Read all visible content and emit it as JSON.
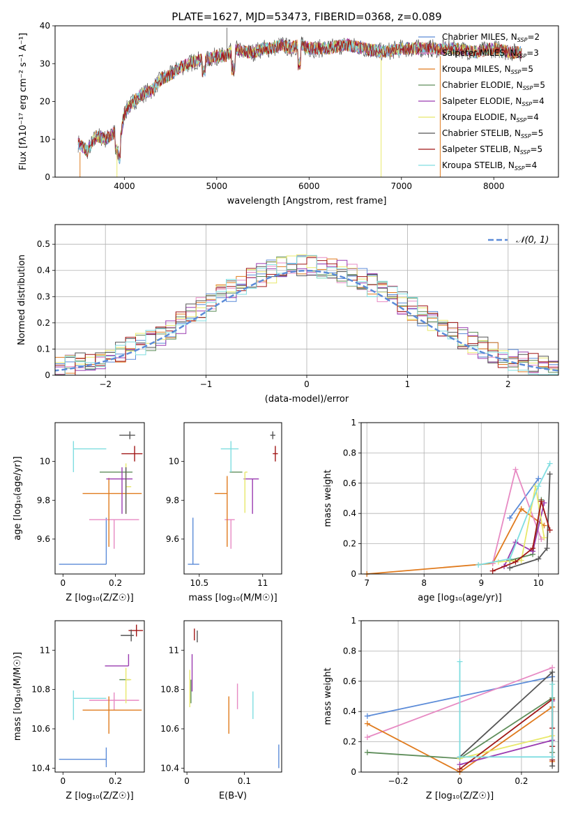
{
  "figure": {
    "title": "PLATE=1627, MJD=53473, FIBERID=0368, z=0.089"
  },
  "legend_entries": [
    {
      "label": "Chabrier MILES, N",
      "sub": "SSP",
      "tail": "=2",
      "color": "#5b8bd8"
    },
    {
      "label": "Salpeter MILES, N",
      "sub": "SSP",
      "tail": "=3",
      "color": "#e78ac3"
    },
    {
      "label": "Kroupa MILES, N",
      "sub": "SSP",
      "tail": "=5",
      "color": "#e07b1e"
    },
    {
      "label": "Chabrier ELODIE, N",
      "sub": "SSP",
      "tail": "=5",
      "color": "#5f8e5b"
    },
    {
      "label": "Salpeter ELODIE, N",
      "sub": "SSP",
      "tail": "=4",
      "color": "#9a3bb0"
    },
    {
      "label": "Kroupa ELODIE, N",
      "sub": "SSP",
      "tail": "=4",
      "color": "#e8e86a"
    },
    {
      "label": "Chabrier STELIB, N",
      "sub": "SSP",
      "tail": "=5",
      "color": "#555555"
    },
    {
      "label": "Salpeter STELIB, N",
      "sub": "SSP",
      "tail": "=5",
      "color": "#a01616"
    },
    {
      "label": "Kroupa STELIB, N",
      "sub": "SSP",
      "tail": "=4",
      "color": "#7fdde0"
    }
  ],
  "chart_data": [
    {
      "id": "spectrum",
      "type": "line",
      "xlabel": "wavelength [Angstrom, rest frame]",
      "ylabel": "Flux [fλ10⁻¹⁷ erg cm⁻² s⁻¹ A⁻¹]",
      "xlim": [
        3250,
        8700
      ],
      "ylim": [
        0,
        40
      ],
      "xticks": [
        4000,
        5000,
        6000,
        7000,
        8000
      ],
      "yticks": [
        0,
        10,
        20,
        30,
        40
      ],
      "envelope": {
        "x": [
          3500,
          3600,
          3700,
          3800,
          3900,
          3950,
          4000,
          4100,
          4200,
          4300,
          4400,
          4500,
          4600,
          4700,
          4800,
          4900,
          5000,
          5100,
          5200,
          5300,
          5400,
          5500,
          5600,
          5700,
          5800,
          5900,
          6000,
          6200,
          6400,
          6600,
          6800,
          7000,
          7200,
          7400,
          7600,
          7800,
          8000,
          8200,
          8300
        ],
        "y": [
          9,
          7,
          11,
          10,
          12,
          9,
          17,
          20,
          22,
          23,
          26,
          27,
          29,
          30,
          31,
          31,
          32,
          32,
          34,
          33,
          33,
          34,
          34,
          35,
          34,
          35,
          34,
          34,
          35,
          34,
          33,
          34,
          34,
          34,
          34,
          33,
          34,
          33,
          33
        ]
      },
      "dropouts": [
        3520,
        3920,
        6780,
        7420
      ]
    },
    {
      "id": "residuals",
      "type": "histogram",
      "xlabel": "(data-model)/error",
      "ylabel": "Normed distribution",
      "xlim": [
        -2.5,
        2.5
      ],
      "ylim": [
        0,
        0.575
      ],
      "xticks": [
        -2,
        -1,
        0,
        1,
        2
      ],
      "yticks": [
        0,
        0.1,
        0.2,
        0.3,
        0.4,
        0.5
      ],
      "bin_width": 0.1,
      "reference_curve": "𝒩(0, 1)",
      "grid": true
    },
    {
      "id": "age_vs_z",
      "type": "errorbar",
      "xlabel": "Z [log₁₀(Z/Z☉)]",
      "ylabel": "age  [log₁₀(age/yr)]",
      "xlim": [
        -0.03,
        0.31
      ],
      "ylim": [
        9.42,
        10.2
      ],
      "xticks": [
        0.0,
        0.2
      ],
      "yticks": [
        9.6,
        9.8,
        10.0
      ],
      "points": [
        {
          "x": 0.165,
          "y": 9.47,
          "xerr": [
            0.18,
            0.0
          ],
          "yerr": [
            0.0,
            0.24
          ],
          "color": "#5b8bd8"
        },
        {
          "x": 0.195,
          "y": 9.7,
          "xerr": [
            0.095,
            0.095
          ],
          "yerr": [
            0.15,
            0.0
          ],
          "color": "#e78ac3"
        },
        {
          "x": 0.175,
          "y": 9.835,
          "xerr": [
            0.1,
            0.125
          ],
          "yerr": [
            0.275,
            0.08
          ],
          "color": "#e07b1e"
        },
        {
          "x": 0.215,
          "y": 9.945,
          "xerr": [
            0.075,
            0.05
          ],
          "yerr": [
            0.0,
            0.0
          ],
          "color": "#5f8e5b"
        },
        {
          "x": 0.225,
          "y": 9.91,
          "xerr": [
            0.06,
            0.04
          ],
          "yerr": [
            0.18,
            0.06
          ],
          "color": "#9a3bb0"
        },
        {
          "x": 0.24,
          "y": 9.87,
          "xerr": [
            0.0,
            0.02
          ],
          "yerr": [
            0.14,
            0.12
          ],
          "color": "#e8e86a"
        },
        {
          "x": 0.24,
          "y": 9.87,
          "xerr": [
            0.0,
            0.0
          ],
          "yerr": [
            0.14,
            0.1
          ],
          "color": "#555555"
        },
        {
          "x": 0.273,
          "y": 10.04,
          "xerr": [
            0.05,
            0.03
          ],
          "yerr": [
            0.04,
            0.04
          ],
          "color": "#a01616"
        },
        {
          "x": 0.255,
          "y": 10.135,
          "xerr": [
            0.04,
            0.02
          ],
          "yerr": [
            0.02,
            0.02
          ],
          "color": "#555555"
        },
        {
          "x": 0.04,
          "y": 10.065,
          "xerr": [
            0.0,
            0.125
          ],
          "yerr": [
            0.12,
            0.04
          ],
          "color": "#7fdde0"
        }
      ]
    },
    {
      "id": "age_vs_mass",
      "type": "errorbar",
      "xlabel": "mass [log₁₀(M/M☉)]",
      "ylabel": "",
      "xlim": [
        10.38,
        11.15
      ],
      "ylim": [
        9.42,
        10.2
      ],
      "xticks": [
        10.5,
        11.0
      ],
      "yticks": [
        9.6,
        9.8,
        10.0
      ],
      "points": [
        {
          "x": 10.45,
          "y": 9.47,
          "xerr": [
            0.04,
            0.05
          ],
          "yerr": [
            0.0,
            0.24
          ],
          "color": "#5b8bd8"
        },
        {
          "x": 10.75,
          "y": 9.7,
          "xerr": [
            0.05,
            0.03
          ],
          "yerr": [
            0.15,
            0.0
          ],
          "color": "#e78ac3"
        },
        {
          "x": 10.72,
          "y": 9.835,
          "xerr": [
            0.1,
            0.0
          ],
          "yerr": [
            0.275,
            0.09
          ],
          "color": "#e07b1e"
        },
        {
          "x": 10.84,
          "y": 9.945,
          "xerr": [
            0.1,
            0.0
          ],
          "yerr": [
            0.0,
            0.0
          ],
          "color": "#5f8e5b"
        },
        {
          "x": 10.92,
          "y": 9.91,
          "xerr": [
            0.07,
            0.05
          ],
          "yerr": [
            0.18,
            0.0
          ],
          "color": "#9a3bb0"
        },
        {
          "x": 10.86,
          "y": 9.945,
          "xerr": [
            0.0,
            0.02
          ],
          "yerr": [
            0.21,
            0.0
          ],
          "color": "#e8e86a"
        },
        {
          "x": 11.1,
          "y": 10.04,
          "xerr": [
            0.02,
            0.02
          ],
          "yerr": [
            0.04,
            0.04
          ],
          "color": "#a01616"
        },
        {
          "x": 11.08,
          "y": 10.135,
          "xerr": [
            0.02,
            0.02
          ],
          "yerr": [
            0.02,
            0.02
          ],
          "color": "#555555"
        },
        {
          "x": 10.75,
          "y": 10.065,
          "xerr": [
            0.08,
            0.06
          ],
          "yerr": [
            0.12,
            0.04
          ],
          "color": "#7fdde0"
        }
      ]
    },
    {
      "id": "weight_vs_age",
      "type": "line",
      "xlabel": "age  [log₁₀(age/yr)]",
      "ylabel": "mass weight",
      "xlim": [
        6.9,
        10.35
      ],
      "ylim": [
        0,
        1.0
      ],
      "xticks": [
        7,
        8,
        9,
        10
      ],
      "yticks": [
        0.0,
        0.2,
        0.4,
        0.6,
        0.8,
        1.0
      ],
      "grid": true,
      "series": [
        {
          "color": "#e07b1e",
          "x": [
            7.0,
            9.2,
            9.7,
            10.1
          ],
          "y": [
            0.0,
            0.07,
            0.43,
            0.32
          ]
        },
        {
          "color": "#5b8bd8",
          "x": [
            9.5,
            10.0
          ],
          "y": [
            0.37,
            0.63
          ]
        },
        {
          "color": "#e78ac3",
          "x": [
            9.2,
            9.6,
            10.05
          ],
          "y": [
            0.07,
            0.69,
            0.23
          ]
        },
        {
          "color": "#5f8e5b",
          "x": [
            9.5,
            9.9,
            10.05
          ],
          "y": [
            0.09,
            0.13,
            0.49
          ]
        },
        {
          "color": "#9a3bb0",
          "x": [
            9.4,
            9.6,
            9.9,
            10.1
          ],
          "y": [
            0.05,
            0.21,
            0.15,
            0.47
          ]
        },
        {
          "color": "#e8e86a",
          "x": [
            9.3,
            9.7,
            9.95,
            10.1
          ],
          "y": [
            0.08,
            0.09,
            0.58,
            0.24
          ]
        },
        {
          "color": "#555555",
          "x": [
            9.5,
            10.0,
            10.15,
            10.2
          ],
          "y": [
            0.04,
            0.1,
            0.17,
            0.66
          ]
        },
        {
          "color": "#a01616",
          "x": [
            9.2,
            9.6,
            9.9,
            10.05,
            10.2
          ],
          "y": [
            0.02,
            0.08,
            0.17,
            0.48,
            0.29
          ]
        },
        {
          "color": "#7fdde0",
          "x": [
            8.95,
            9.5,
            10.0,
            10.2
          ],
          "y": [
            0.06,
            0.1,
            0.58,
            0.73
          ]
        }
      ]
    },
    {
      "id": "mass_vs_z",
      "type": "errorbar",
      "xlabel": "Z [log₁₀(Z/Z☉)]",
      "ylabel": "mass [log₁₀(M/M☉)]",
      "xlim": [
        -0.03,
        0.31
      ],
      "ylim": [
        10.38,
        11.15
      ],
      "xticks": [
        0.0,
        0.2
      ],
      "yticks": [
        10.4,
        10.6,
        10.8,
        11.0
      ],
      "points": [
        {
          "x": 0.165,
          "y": 10.445,
          "xerr": [
            0.18,
            0.0
          ],
          "yerr": [
            0.04,
            0.06
          ],
          "color": "#5b8bd8"
        },
        {
          "x": 0.195,
          "y": 10.745,
          "xerr": [
            0.095,
            0.095
          ],
          "yerr": [
            0.05,
            0.04
          ],
          "color": "#e78ac3"
        },
        {
          "x": 0.175,
          "y": 10.695,
          "xerr": [
            0.1,
            0.125
          ],
          "yerr": [
            0.12,
            0.07
          ],
          "color": "#e07b1e"
        },
        {
          "x": 0.215,
          "y": 10.85,
          "xerr": [
            0.0,
            0.04
          ],
          "yerr": [
            0.0,
            0.0
          ],
          "color": "#5f8e5b"
        },
        {
          "x": 0.25,
          "y": 10.92,
          "xerr": [
            0.09,
            0.0
          ],
          "yerr": [
            0.0,
            0.06
          ],
          "color": "#9a3bb0"
        },
        {
          "x": 0.24,
          "y": 10.85,
          "xerr": [
            0.0,
            0.02
          ],
          "yerr": [
            0.12,
            0.06
          ],
          "color": "#e8e86a"
        },
        {
          "x": 0.04,
          "y": 10.755,
          "xerr": [
            0.0,
            0.125
          ],
          "yerr": [
            0.11,
            0.04
          ],
          "color": "#7fdde0"
        },
        {
          "x": 0.28,
          "y": 11.1,
          "xerr": [
            0.03,
            0.025
          ],
          "yerr": [
            0.03,
            0.03
          ],
          "color": "#a01616"
        },
        {
          "x": 0.26,
          "y": 11.075,
          "xerr": [
            0.04,
            0.01
          ],
          "yerr": [
            0.03,
            0.03
          ],
          "color": "#555555"
        }
      ]
    },
    {
      "id": "mass_vs_ebv",
      "type": "errorbar",
      "xlabel": "E(B-V)",
      "ylabel": "",
      "xlim": [
        -0.005,
        0.165
      ],
      "ylim": [
        10.38,
        11.15
      ],
      "xticks": [
        0.0,
        0.1
      ],
      "yticks": [
        10.4,
        10.6,
        10.8,
        11.0
      ],
      "points": [
        {
          "x": 0.005,
          "y": 10.8,
          "xerr": [
            0.0,
            0.0
          ],
          "yerr": [
            0.09,
            0.1
          ],
          "color": "#e8e86a"
        },
        {
          "x": 0.007,
          "y": 10.85,
          "xerr": [
            0.0,
            0.0
          ],
          "yerr": [
            0.12,
            0.0
          ],
          "color": "#5f8e5b"
        },
        {
          "x": 0.009,
          "y": 10.93,
          "xerr": [
            0.0,
            0.0
          ],
          "yerr": [
            0.14,
            0.05
          ],
          "color": "#9a3bb0"
        },
        {
          "x": 0.013,
          "y": 11.08,
          "xerr": [
            0.0,
            0.0
          ],
          "yerr": [
            0.03,
            0.03
          ],
          "color": "#a01616"
        },
        {
          "x": 0.018,
          "y": 11.07,
          "xerr": [
            0.0,
            0.0
          ],
          "yerr": [
            0.03,
            0.03
          ],
          "color": "#555555"
        },
        {
          "x": 0.073,
          "y": 10.695,
          "xerr": [
            0.0,
            0.0
          ],
          "yerr": [
            0.12,
            0.07
          ],
          "color": "#e07b1e"
        },
        {
          "x": 0.088,
          "y": 10.75,
          "xerr": [
            0.0,
            0.0
          ],
          "yerr": [
            0.05,
            0.08
          ],
          "color": "#e78ac3"
        },
        {
          "x": 0.115,
          "y": 10.72,
          "xerr": [
            0.0,
            0.0
          ],
          "yerr": [
            0.07,
            0.07
          ],
          "color": "#7fdde0"
        },
        {
          "x": 0.16,
          "y": 10.45,
          "xerr": [
            0.0,
            0.0
          ],
          "yerr": [
            0.05,
            0.07
          ],
          "color": "#5b8bd8"
        }
      ]
    },
    {
      "id": "weight_vs_z",
      "type": "line",
      "xlabel": "Z [log₁₀(Z/Z☉)]",
      "ylabel": "mass weight",
      "xlim": [
        -0.32,
        0.32
      ],
      "ylim": [
        0,
        1.0
      ],
      "xticks": [
        -0.2,
        0.0,
        0.2
      ],
      "yticks": [
        0.0,
        0.2,
        0.4,
        0.6,
        0.8,
        1.0
      ],
      "grid": true,
      "series": [
        {
          "color": "#5b8bd8",
          "x": [
            -0.3,
            0.3
          ],
          "y": [
            0.37,
            0.63
          ]
        },
        {
          "color": "#e78ac3",
          "x": [
            -0.3,
            0.3
          ],
          "y": [
            0.23,
            0.69
          ]
        },
        {
          "color": "#e07b1e",
          "x": [
            -0.3,
            0.0,
            0.3,
            0.3
          ],
          "y": [
            0.32,
            0.0,
            0.43,
            0.07
          ]
        },
        {
          "color": "#5f8e5b",
          "x": [
            -0.3,
            0.0,
            0.3,
            0.3
          ],
          "y": [
            0.13,
            0.09,
            0.49,
            0.13
          ]
        },
        {
          "color": "#9a3bb0",
          "x": [
            0.0,
            0.3,
            0.3
          ],
          "y": [
            0.05,
            0.21,
            0.47
          ]
        },
        {
          "color": "#e8e86a",
          "x": [
            0.0,
            0.3,
            0.3
          ],
          "y": [
            0.09,
            0.24,
            0.58
          ]
        },
        {
          "color": "#555555",
          "x": [
            0.0,
            0.3,
            0.3,
            0.3
          ],
          "y": [
            0.1,
            0.66,
            0.17,
            0.04
          ]
        },
        {
          "color": "#a01616",
          "x": [
            0.0,
            0.3,
            0.3,
            0.3,
            0.3
          ],
          "y": [
            0.02,
            0.48,
            0.29,
            0.08,
            0.17
          ]
        },
        {
          "color": "#7fdde0",
          "x": [
            0.0,
            0.0,
            0.3,
            0.3
          ],
          "y": [
            0.73,
            0.1,
            0.1,
            0.58
          ]
        }
      ]
    }
  ]
}
